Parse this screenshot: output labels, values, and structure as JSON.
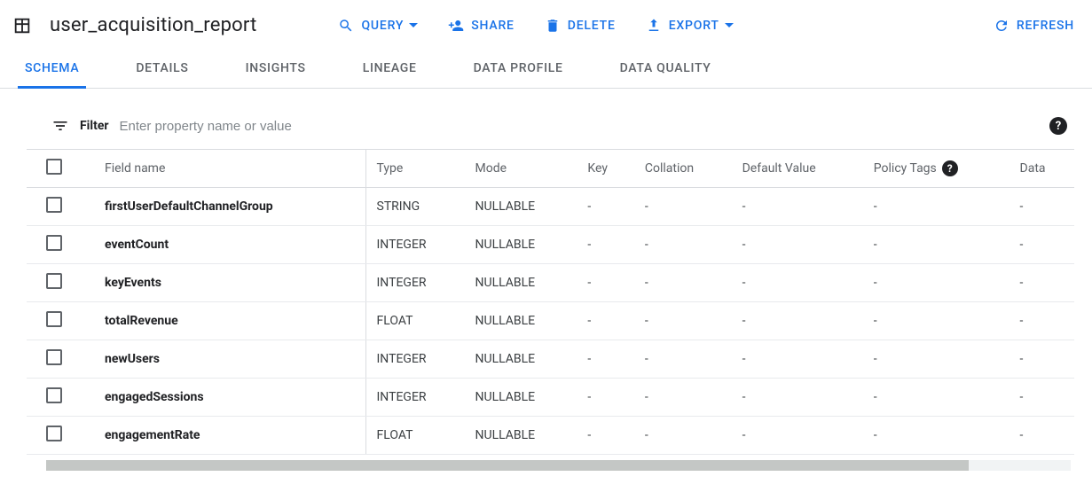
{
  "header": {
    "title": "user_acquisition_report",
    "actions": {
      "query": "QUERY",
      "share": "SHARE",
      "delete": "DELETE",
      "export": "EXPORT",
      "refresh": "REFRESH"
    }
  },
  "tabs": [
    {
      "label": "SCHEMA",
      "active": true
    },
    {
      "label": "DETAILS",
      "active": false
    },
    {
      "label": "INSIGHTS",
      "active": false
    },
    {
      "label": "LINEAGE",
      "active": false
    },
    {
      "label": "DATA PROFILE",
      "active": false
    },
    {
      "label": "DATA QUALITY",
      "active": false
    }
  ],
  "filter": {
    "label": "Filter",
    "placeholder": "Enter property name or value"
  },
  "schema": {
    "columns": [
      "Field name",
      "Type",
      "Mode",
      "Key",
      "Collation",
      "Default Value",
      "Policy Tags",
      "Data"
    ],
    "rows": [
      {
        "field": "firstUserDefaultChannelGroup",
        "type": "STRING",
        "mode": "NULLABLE",
        "key": "-",
        "collation": "-",
        "default": "-",
        "policy": "-",
        "data": "-"
      },
      {
        "field": "eventCount",
        "type": "INTEGER",
        "mode": "NULLABLE",
        "key": "-",
        "collation": "-",
        "default": "-",
        "policy": "-",
        "data": "-"
      },
      {
        "field": "keyEvents",
        "type": "INTEGER",
        "mode": "NULLABLE",
        "key": "-",
        "collation": "-",
        "default": "-",
        "policy": "-",
        "data": "-"
      },
      {
        "field": "totalRevenue",
        "type": "FLOAT",
        "mode": "NULLABLE",
        "key": "-",
        "collation": "-",
        "default": "-",
        "policy": "-",
        "data": "-"
      },
      {
        "field": "newUsers",
        "type": "INTEGER",
        "mode": "NULLABLE",
        "key": "-",
        "collation": "-",
        "default": "-",
        "policy": "-",
        "data": "-"
      },
      {
        "field": "engagedSessions",
        "type": "INTEGER",
        "mode": "NULLABLE",
        "key": "-",
        "collation": "-",
        "default": "-",
        "policy": "-",
        "data": "-"
      },
      {
        "field": "engagementRate",
        "type": "FLOAT",
        "mode": "NULLABLE",
        "key": "-",
        "collation": "-",
        "default": "-",
        "policy": "-",
        "data": "-"
      }
    ]
  },
  "colors": {
    "primary": "#1a73e8",
    "text": "#202124",
    "text_secondary": "#5f6368",
    "border": "#dadce0",
    "row_border": "#e8eaed"
  }
}
